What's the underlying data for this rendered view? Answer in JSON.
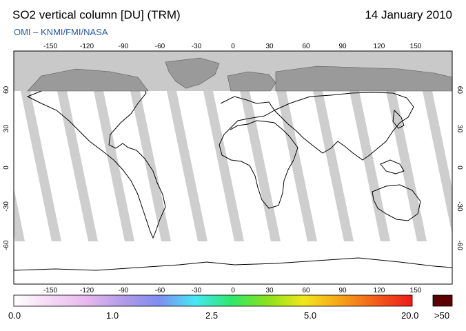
{
  "title": "SO2 vertical column [DU] (TRM)",
  "date": "14 January 2010",
  "credit": "OMI – KNMI/FMI/NASA",
  "map": {
    "lon_ticks": [
      "-150",
      "-120",
      "-90",
      "-60",
      "-30",
      "0",
      "30",
      "60",
      "90",
      "120",
      "150"
    ],
    "lat_ticks": [
      "60",
      "30",
      "0",
      "-30",
      "-60"
    ]
  },
  "colorbar": {
    "labels": [
      "0.0",
      "1.0",
      "2.5",
      "5.0",
      "20.0"
    ],
    "over_label": ">50",
    "over_color": "#5a0000",
    "colors": [
      "#ffffff",
      "#f5d8f5",
      "#e8b8ef",
      "#b39ce8",
      "#7f8df0",
      "#45e8f5",
      "#2ee86a",
      "#8ce21a",
      "#f2e61a",
      "#f7a41a",
      "#f25d1a",
      "#ee1a1a"
    ]
  },
  "colors": {
    "polar_night": "#c9c9c9",
    "land_dark": "#9a9a9a",
    "swath": "#c9c9c9",
    "credit": "#2a5aa0"
  }
}
